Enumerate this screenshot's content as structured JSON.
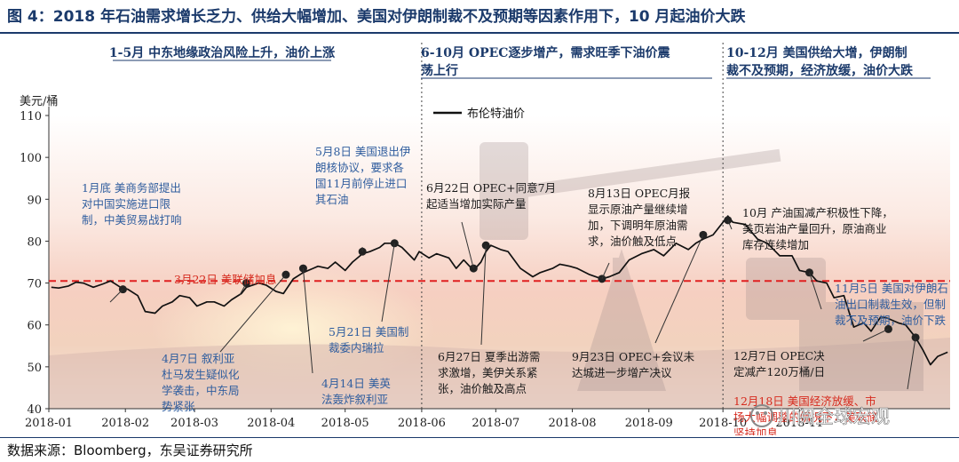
{
  "figure_title": "图 4：2018 年石油需求增长乏力、供给大幅增加、美国对伊朗制裁不及预期等因素作用下，10 月起油价大跌",
  "source_note": "数据来源：Bloomberg，东吴证券研究所",
  "watermark": "川阅全球宏观",
  "colors": {
    "line": "#111111",
    "reference": "#e02020",
    "note_red": "#d62b1f",
    "note_blue": "#2f5d9e",
    "note_dark": "#1a1a1a",
    "title": "#1b3a6b"
  },
  "chart_data": {
    "type": "line",
    "ylabel": "美元/桶",
    "ylim": [
      40,
      110
    ],
    "yticks": [
      40,
      50,
      60,
      70,
      80,
      90,
      100,
      110
    ],
    "xlim": [
      "2018-01-01",
      "2019-01-01"
    ],
    "xticks": [
      {
        "date": "2018-01-01",
        "label": "2018-01"
      },
      {
        "date": "2018-02-01",
        "label": "2018-02"
      },
      {
        "date": "2018-03-01",
        "label": "2018-03"
      },
      {
        "date": "2018-04-01",
        "label": "2018-04"
      },
      {
        "date": "2018-05-01",
        "label": "2018-05"
      },
      {
        "date": "2018-06-01",
        "label": "2018-06"
      },
      {
        "date": "2018-07-01",
        "label": "2018-07"
      },
      {
        "date": "2018-08-01",
        "label": "2018-08"
      },
      {
        "date": "2018-09-01",
        "label": "2018-09"
      },
      {
        "date": "2018-10-01",
        "label": "2018-10"
      },
      {
        "date": "2018-11-01",
        "label": "2018-11"
      }
    ],
    "legend": {
      "label": "布伦特油价",
      "placement": "top-center"
    },
    "reference_line": {
      "y": 70.5,
      "style": "dashed"
    },
    "period_dividers": [
      "2018-06-01",
      "2018-10-01"
    ],
    "periods": [
      {
        "label": "1-5月 中东地缘政治风险上升，油价上涨"
      },
      {
        "label": "6-10月 OPEC逐步增产，需求旺季下油价震荡上行"
      },
      {
        "label": "10-12月 美国供给大增，伊朗制裁不及预期，经济放缓，油价大跌"
      }
    ],
    "series": [
      {
        "name": "布伦特油价",
        "points": [
          [
            "2018-01-02",
            69.0
          ],
          [
            "2018-01-05",
            68.8
          ],
          [
            "2018-01-09",
            69.3
          ],
          [
            "2018-01-12",
            70.2
          ],
          [
            "2018-01-15",
            70.0
          ],
          [
            "2018-01-19",
            69.0
          ],
          [
            "2018-01-23",
            69.8
          ],
          [
            "2018-01-26",
            70.5
          ],
          [
            "2018-01-30",
            69.0
          ],
          [
            "2018-02-02",
            68.5
          ],
          [
            "2018-02-06",
            67.0
          ],
          [
            "2018-02-09",
            63.2
          ],
          [
            "2018-02-13",
            62.8
          ],
          [
            "2018-02-16",
            64.5
          ],
          [
            "2018-02-20",
            65.5
          ],
          [
            "2018-02-23",
            67.0
          ],
          [
            "2018-02-27",
            66.5
          ],
          [
            "2018-03-02",
            64.5
          ],
          [
            "2018-03-06",
            65.5
          ],
          [
            "2018-03-09",
            65.5
          ],
          [
            "2018-03-13",
            64.5
          ],
          [
            "2018-03-16",
            66.0
          ],
          [
            "2018-03-20",
            67.5
          ],
          [
            "2018-03-22",
            69.0
          ],
          [
            "2018-03-27",
            70.0
          ],
          [
            "2018-03-30",
            69.5
          ],
          [
            "2018-04-03",
            68.0
          ],
          [
            "2018-04-06",
            67.5
          ],
          [
            "2018-04-10",
            71.0
          ],
          [
            "2018-04-14",
            72.5
          ],
          [
            "2018-04-18",
            73.5
          ],
          [
            "2018-04-20",
            74.0
          ],
          [
            "2018-04-24",
            73.5
          ],
          [
            "2018-04-27",
            75.0
          ],
          [
            "2018-05-01",
            73.0
          ],
          [
            "2018-05-04",
            75.0
          ],
          [
            "2018-05-08",
            77.0
          ],
          [
            "2018-05-11",
            77.5
          ],
          [
            "2018-05-15",
            78.5
          ],
          [
            "2018-05-17",
            79.5
          ],
          [
            "2018-05-21",
            79.5
          ],
          [
            "2018-05-24",
            78.5
          ],
          [
            "2018-05-29",
            75.5
          ],
          [
            "2018-05-31",
            77.5
          ],
          [
            "2018-06-04",
            76.0
          ],
          [
            "2018-06-07",
            77.0
          ],
          [
            "2018-06-12",
            76.0
          ],
          [
            "2018-06-15",
            73.5
          ],
          [
            "2018-06-18",
            75.5
          ],
          [
            "2018-06-22",
            73.0
          ],
          [
            "2018-06-25",
            75.0
          ],
          [
            "2018-06-27",
            77.5
          ],
          [
            "2018-06-29",
            79.0
          ],
          [
            "2018-07-03",
            78.0
          ],
          [
            "2018-07-06",
            77.5
          ],
          [
            "2018-07-11",
            73.5
          ],
          [
            "2018-07-16",
            71.5
          ],
          [
            "2018-07-19",
            72.5
          ],
          [
            "2018-07-24",
            73.5
          ],
          [
            "2018-07-27",
            74.5
          ],
          [
            "2018-07-31",
            74.0
          ],
          [
            "2018-08-03",
            73.5
          ],
          [
            "2018-08-08",
            72.0
          ],
          [
            "2018-08-13",
            71.0
          ],
          [
            "2018-08-16",
            71.5
          ],
          [
            "2018-08-20",
            72.5
          ],
          [
            "2018-08-24",
            75.5
          ],
          [
            "2018-08-29",
            77.0
          ],
          [
            "2018-09-03",
            78.0
          ],
          [
            "2018-09-07",
            76.5
          ],
          [
            "2018-09-12",
            79.5
          ],
          [
            "2018-09-17",
            78.0
          ],
          [
            "2018-09-20",
            79.5
          ],
          [
            "2018-09-23",
            80.5
          ],
          [
            "2018-09-27",
            81.5
          ],
          [
            "2018-10-01",
            84.5
          ],
          [
            "2018-10-03",
            86.0
          ],
          [
            "2018-10-05",
            84.5
          ],
          [
            "2018-10-10",
            84.0
          ],
          [
            "2018-10-15",
            80.5
          ],
          [
            "2018-10-19",
            79.5
          ],
          [
            "2018-10-24",
            76.5
          ],
          [
            "2018-10-29",
            76.5
          ],
          [
            "2018-11-01",
            73.0
          ],
          [
            "2018-11-05",
            72.5
          ],
          [
            "2018-11-08",
            70.5
          ],
          [
            "2018-11-12",
            70.0
          ],
          [
            "2018-11-15",
            66.5
          ],
          [
            "2018-11-19",
            67.0
          ],
          [
            "2018-11-23",
            59.5
          ],
          [
            "2018-11-27",
            60.5
          ],
          [
            "2018-11-30",
            58.5
          ],
          [
            "2018-12-04",
            62.0
          ],
          [
            "2018-12-07",
            61.5
          ],
          [
            "2018-12-11",
            60.5
          ],
          [
            "2018-12-14",
            60.0
          ],
          [
            "2018-12-18",
            57.0
          ],
          [
            "2018-12-21",
            54.0
          ],
          [
            "2018-12-24",
            50.5
          ],
          [
            "2018-12-27",
            52.5
          ],
          [
            "2018-12-31",
            53.5
          ]
        ]
      }
    ],
    "event_markers": [
      {
        "date": "2018-01-31",
        "value": 68.5
      },
      {
        "date": "2018-03-22",
        "value": 70.0
      },
      {
        "date": "2018-04-07",
        "value": 72.0
      },
      {
        "date": "2018-04-14",
        "value": 73.5
      },
      {
        "date": "2018-05-08",
        "value": 77.5
      },
      {
        "date": "2018-05-21",
        "value": 79.5
      },
      {
        "date": "2018-06-22",
        "value": 73.5
      },
      {
        "date": "2018-06-27",
        "value": 79.0
      },
      {
        "date": "2018-08-13",
        "value": 71.0
      },
      {
        "date": "2018-09-23",
        "value": 81.5
      },
      {
        "date": "2018-10-03",
        "value": 85.0
      },
      {
        "date": "2018-11-05",
        "value": 72.5
      },
      {
        "date": "2018-12-07",
        "value": 59.0
      },
      {
        "date": "2018-12-18",
        "value": 57.0
      }
    ],
    "annotations": [
      {
        "id": "a1",
        "color": "note_blue",
        "lines": [
          "1月底 美商务部提出",
          "对中国实施进口限",
          "制，中美贸易战打响"
        ]
      },
      {
        "id": "a2",
        "color": "note_red",
        "lines": [
          "3月22日 美联储加息"
        ]
      },
      {
        "id": "a3",
        "color": "note_blue",
        "lines": [
          "4月7日 叙利亚",
          "杜马发生疑似化",
          "学袭击，中东局",
          "势紧张"
        ]
      },
      {
        "id": "a4",
        "color": "note_blue",
        "lines": [
          "4月14日 美英",
          "法轰炸叙利亚"
        ]
      },
      {
        "id": "a5",
        "color": "note_blue",
        "lines": [
          "5月8日 美国退出伊",
          "朗核协议，要求各",
          "国11月前停止进口",
          "其石油"
        ]
      },
      {
        "id": "a6",
        "color": "note_blue",
        "lines": [
          "5月21日 美国制",
          "裁委内瑞拉"
        ]
      },
      {
        "id": "a7",
        "color": "note_dark",
        "lines": [
          "6月22日 OPEC+同意7月",
          "起适当增加实际产量"
        ]
      },
      {
        "id": "a8",
        "color": "note_dark",
        "lines": [
          "6月27日 夏季出游需",
          "求激增，美伊关系紧",
          "张，油价触及高点"
        ]
      },
      {
        "id": "a9",
        "color": "note_dark",
        "lines": [
          "8月13日 OPEC月报",
          "显示原油产量继续增",
          "加，下调明年原油需",
          "求，油价触及低点"
        ]
      },
      {
        "id": "a10",
        "color": "note_dark",
        "lines": [
          "9月23日 OPEC+会议未",
          "达城进一步增产决议"
        ]
      },
      {
        "id": "a11",
        "color": "note_dark",
        "lines": [
          "10月 产油国减产积极性下降，",
          "美页岩油产量回升，原油商业",
          "库存连续增加"
        ]
      },
      {
        "id": "a12",
        "color": "note_blue",
        "lines": [
          "11月5日 美国对伊朗石",
          "油出口制裁生效，但制",
          "裁不及预期，油价下跌"
        ]
      },
      {
        "id": "a13",
        "color": "note_dark",
        "lines": [
          "12月7日 OPEC决",
          "定减产120万桶/日"
        ]
      },
      {
        "id": "a14",
        "color": "note_red",
        "lines": [
          "12月18日 美国经济放缓、市",
          "场大幅调整的情况下，美联储",
          "坚持加息"
        ]
      }
    ]
  }
}
